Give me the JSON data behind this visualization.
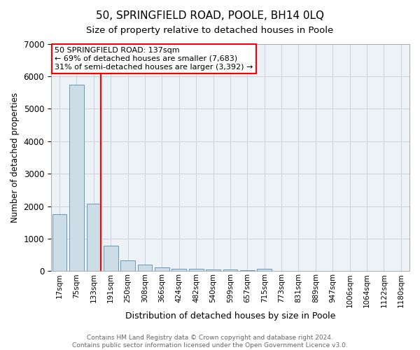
{
  "title": "50, SPRINGFIELD ROAD, POOLE, BH14 0LQ",
  "subtitle": "Size of property relative to detached houses in Poole",
  "xlabel": "Distribution of detached houses by size in Poole",
  "ylabel": "Number of detached properties",
  "bar_color": "#ccdde8",
  "bar_edge_color": "#6699bb",
  "categories": [
    "17sqm",
    "75sqm",
    "133sqm",
    "191sqm",
    "250sqm",
    "308sqm",
    "366sqm",
    "424sqm",
    "482sqm",
    "540sqm",
    "599sqm",
    "657sqm",
    "715sqm",
    "773sqm",
    "831sqm",
    "889sqm",
    "947sqm",
    "1006sqm",
    "1064sqm",
    "1122sqm",
    "1180sqm"
  ],
  "values": [
    1750,
    5750,
    2080,
    790,
    340,
    195,
    110,
    80,
    70,
    50,
    50,
    40,
    80,
    0,
    0,
    0,
    0,
    0,
    0,
    0,
    0
  ],
  "ylim": [
    0,
    7000
  ],
  "yticks": [
    0,
    1000,
    2000,
    3000,
    4000,
    5000,
    6000,
    7000
  ],
  "red_line_index": 2,
  "annotation_line1": "50 SPRINGFIELD ROAD: 137sqm",
  "annotation_line2": "← 69% of detached houses are smaller (7,683)",
  "annotation_line3": "31% of semi-detached houses are larger (3,392) →",
  "footer_line1": "Contains HM Land Registry data © Crown copyright and database right 2024.",
  "footer_line2": "Contains public sector information licensed under the Open Government Licence v3.0.",
  "background_color": "#edf2f7",
  "grid_color": "#c8d4de",
  "title_fontsize": 11,
  "subtitle_fontsize": 9.5,
  "xlabel_fontsize": 9,
  "ylabel_fontsize": 8.5,
  "tick_fontsize": 7.5,
  "ytick_fontsize": 8.5,
  "annotation_fontsize": 8,
  "footer_fontsize": 6.5
}
